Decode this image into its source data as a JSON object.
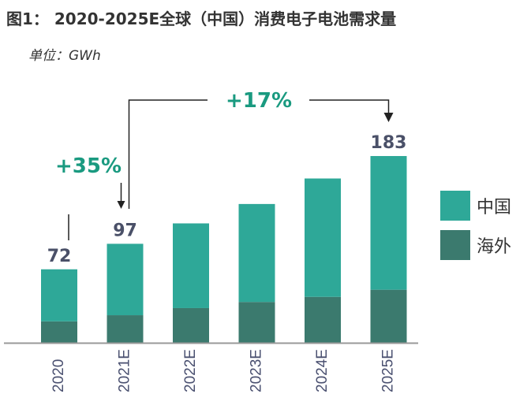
{
  "title": "图1： 2020-2025E全球（中国）消费电子电池需求量",
  "unit_label": "单位：GWh",
  "chart_data": {
    "type": "bar",
    "stacked": true,
    "title": "图1： 2020-2025E全球（中国）消费电子电池需求量",
    "ylabel": "单位：GWh",
    "categories": [
      "2020",
      "2021E",
      "2022E",
      "2023E",
      "2024E",
      "2025E"
    ],
    "series": [
      {
        "name": "海外",
        "color": "#3b7a6e",
        "values": [
          21,
          27,
          34,
          40,
          45,
          52
        ]
      },
      {
        "name": "中国",
        "color": "#2ea898",
        "values": [
          51,
          70,
          83,
          96,
          116,
          131
        ]
      }
    ],
    "totals_labels": {
      "2020": "72",
      "2021E": "97",
      "2025E": "183"
    },
    "annotations": [
      {
        "text": "+35%",
        "from": "2020",
        "to": "2021E",
        "color": "#1a9a80"
      },
      {
        "text": "+17%",
        "from": "2021E",
        "to": "2025E",
        "color": "#1a9a80"
      }
    ],
    "legend_position": "right",
    "ylim": [
      0,
      200
    ],
    "grid": false
  }
}
